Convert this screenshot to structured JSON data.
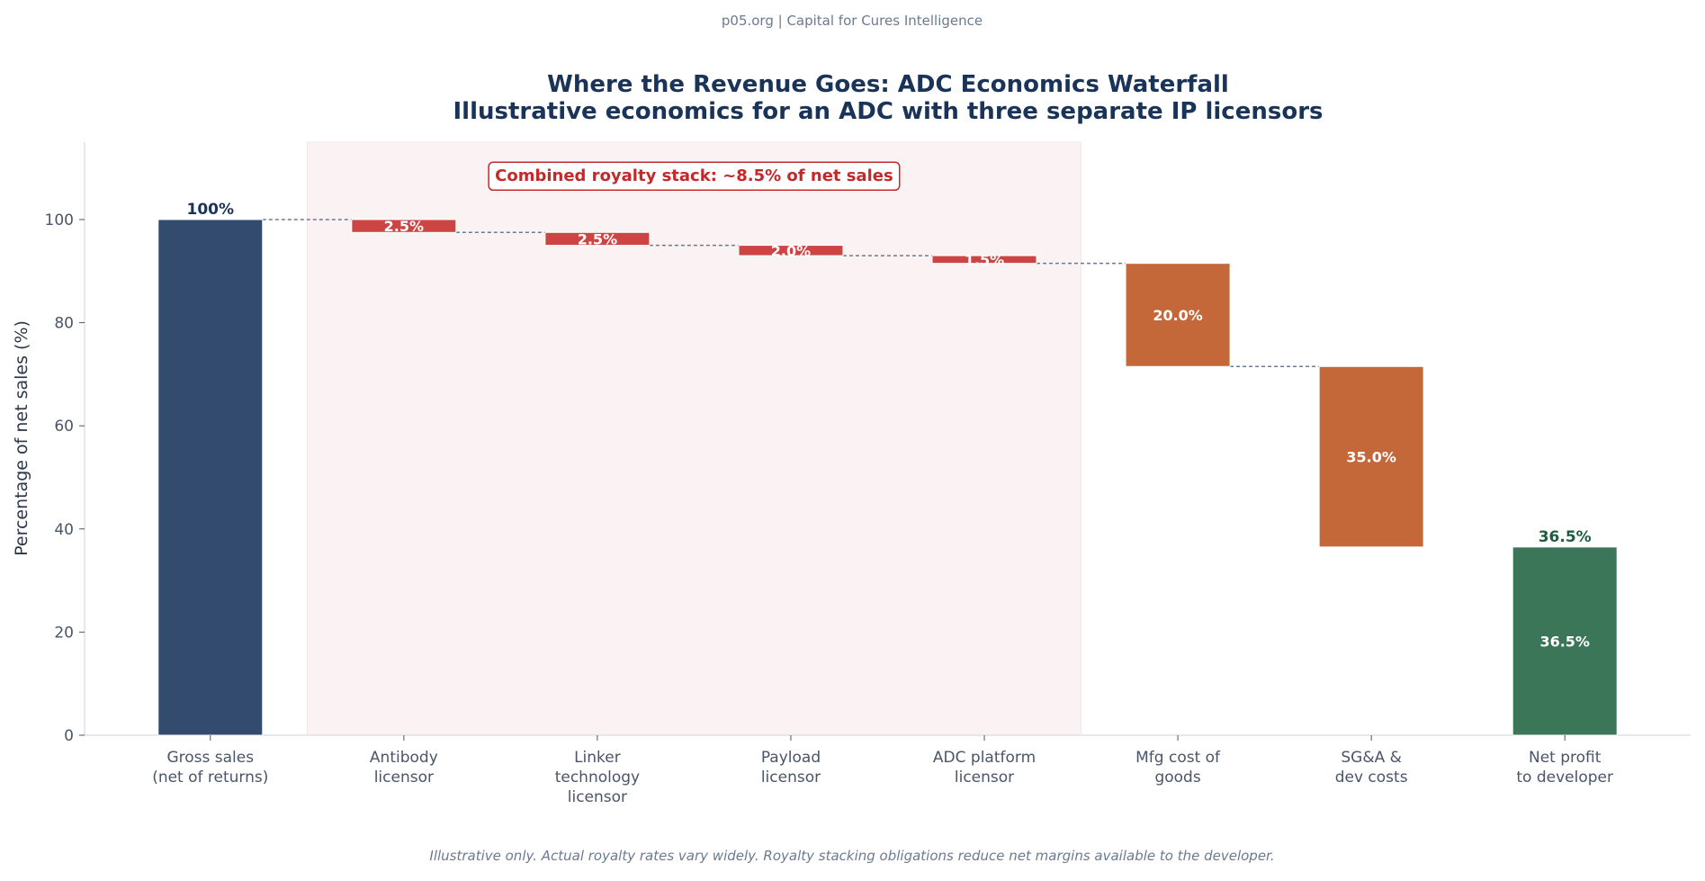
{
  "watermark": "p05.org | Capital for Cures Intelligence",
  "footer": "Illustrative only. Actual royalty rates vary widely. Royalty stacking obligations reduce net margins available to the developer.",
  "colors": {
    "total": "#324b6e",
    "royalty": "#cc4444",
    "cost": "#c4683a",
    "net": "#3b7659",
    "shade": "#fbf3f3",
    "title": "#1a3358",
    "text": "#4a5568",
    "connector": "#6b7a90"
  },
  "chart_data": {
    "type": "waterfall",
    "title": "Where the Revenue Goes: ADC Economics Waterfall",
    "subtitle": "Illustrative economics for an ADC with three separate IP licensors",
    "ylabel": "Percentage of net sales (%)",
    "xlabel": "",
    "ylim": [
      0,
      115
    ],
    "yticks": [
      0,
      20,
      40,
      60,
      80,
      100
    ],
    "grid": false,
    "categories": [
      [
        "Gross sales",
        "(net of returns)"
      ],
      [
        "Antibody",
        "licensor"
      ],
      [
        "Linker",
        "technology",
        "licensor"
      ],
      [
        "Payload",
        "licensor"
      ],
      [
        "ADC platform",
        "licensor"
      ],
      [
        "Mfg cost of",
        "goods"
      ],
      [
        "SG&A &",
        "dev costs"
      ],
      [
        "Net profit",
        "to developer"
      ]
    ],
    "bars": [
      {
        "kind": "total",
        "bottom": 0,
        "top": 100,
        "label_above": "100%"
      },
      {
        "kind": "royalty",
        "bottom": 97.5,
        "top": 100,
        "label_inside": "2.5%"
      },
      {
        "kind": "royalty",
        "bottom": 95,
        "top": 97.5,
        "label_inside": "2.5%"
      },
      {
        "kind": "royalty",
        "bottom": 93,
        "top": 95,
        "label_inside": "2.0%"
      },
      {
        "kind": "royalty",
        "bottom": 91.5,
        "top": 93,
        "label_inside": "1.5%"
      },
      {
        "kind": "cost",
        "bottom": 71.5,
        "top": 91.5,
        "label_inside": "20.0%"
      },
      {
        "kind": "cost",
        "bottom": 36.5,
        "top": 71.5,
        "label_inside": "35.0%"
      },
      {
        "kind": "net",
        "bottom": 0,
        "top": 36.5,
        "label_inside": "36.5%",
        "label_above": "36.5%"
      }
    ],
    "annotation": "Combined royalty stack: ~8.5% of net sales",
    "shaded_range": [
      "Antibody licensor",
      "ADC platform licensor"
    ]
  }
}
